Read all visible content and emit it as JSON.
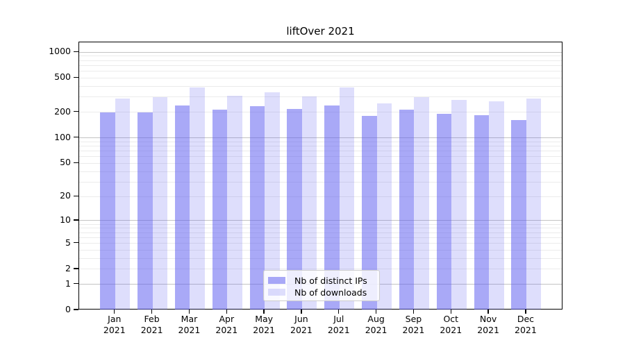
{
  "chart_data": {
    "type": "bar",
    "title": "liftOver 2021",
    "categories": [
      "Jan",
      "Feb",
      "Mar",
      "Apr",
      "May",
      "Jun",
      "Jul",
      "Aug",
      "Sep",
      "Oct",
      "Nov",
      "Dec"
    ],
    "category_year": "2021",
    "series": [
      {
        "name": "Nb of distinct IPs",
        "color": "#a6a6f6",
        "fill": "rgba(90,90,240,0.52)",
        "values": [
          198,
          197,
          240,
          214,
          237,
          217,
          241,
          180,
          214,
          191,
          186,
          163
        ]
      },
      {
        "name": "Nb of downloads",
        "color": "#dbdbfb",
        "fill": "rgba(90,90,240,0.20)",
        "values": [
          287,
          298,
          392,
          313,
          340,
          303,
          388,
          253,
          300,
          280,
          268,
          287
        ]
      }
    ],
    "yscale": "log1p",
    "yticks": [
      1000,
      500,
      200,
      100,
      50,
      20,
      10,
      5,
      2,
      1,
      0
    ],
    "ylim": [
      0,
      1300
    ],
    "grid": "on",
    "legend_position": "lower center"
  },
  "colors": {
    "axis": "#000000",
    "grid_major": "#c3c3c3",
    "grid_minor": "#ebebeb",
    "text": "#000000",
    "legend_border": "#cccccc"
  }
}
